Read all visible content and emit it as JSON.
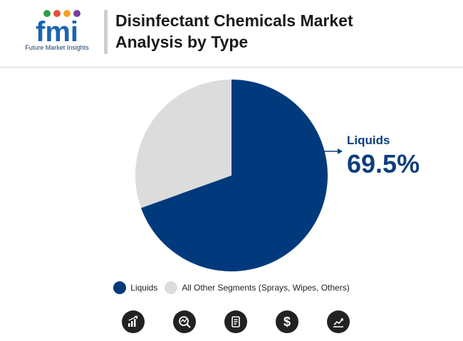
{
  "logo": {
    "text": "fmi",
    "subtitle": "Future Market Insights"
  },
  "header": {
    "title_line1": "Disinfectant Chemicals Market",
    "title_line2": "Analysis by Type"
  },
  "colors": {
    "primary": "#003a7d",
    "secondary": "#dcdcdc",
    "accent_text": "#0d3f7c"
  },
  "chart_data": {
    "type": "pie",
    "title": "Disinfectant Chemicals Market Analysis by Type",
    "slices": [
      {
        "label": "Liquids",
        "value": 69.5,
        "color": "#003a7d"
      },
      {
        "label": "All Other Segments (Sprays, Wipes, Others)",
        "value": 30.5,
        "color": "#dcdcdc"
      }
    ],
    "start_angle_deg": 0,
    "direction": "clockwise",
    "callout": {
      "label": "Liquids",
      "value": "69.5%"
    },
    "legend_position": "bottom"
  },
  "footer_icons": [
    "bar-chart-icon",
    "magnify-chart-icon",
    "document-icon",
    "dollar-icon",
    "trend-chart-icon"
  ]
}
